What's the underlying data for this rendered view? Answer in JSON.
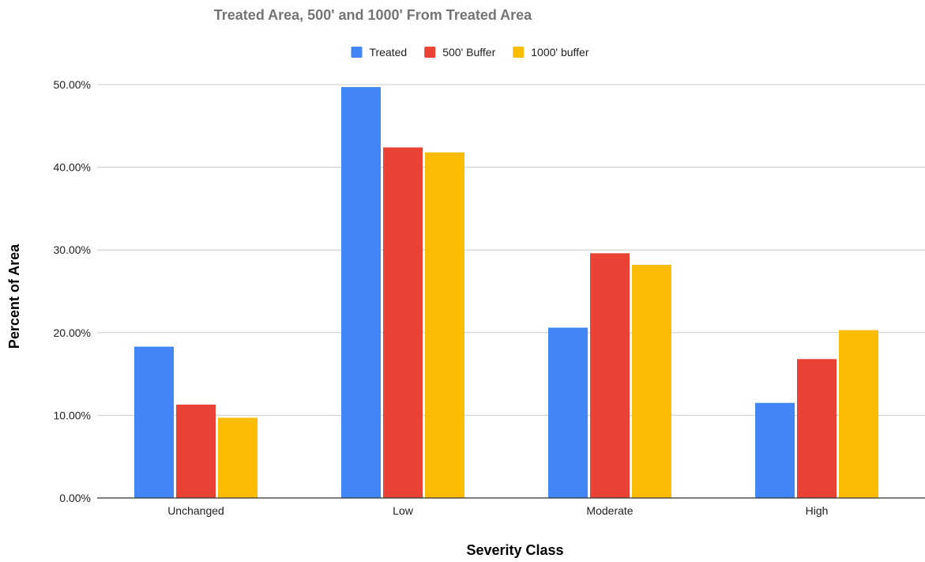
{
  "chart_data": {
    "type": "bar",
    "title": "Treated Area, 500' and 1000' From Treated Area",
    "xlabel": "Severity Class",
    "ylabel": "Percent of Area",
    "categories": [
      "Unchanged",
      "Low",
      "Moderate",
      "High"
    ],
    "series": [
      {
        "name": "Treated",
        "color": "#4285f4",
        "values": [
          18.3,
          49.7,
          20.6,
          11.5
        ]
      },
      {
        "name": "500' Buffer",
        "color": "#ea4335",
        "values": [
          11.3,
          42.4,
          29.6,
          16.8
        ]
      },
      {
        "name": "1000' buffer",
        "color": "#fbbc04",
        "values": [
          9.7,
          41.8,
          28.2,
          20.3
        ]
      }
    ],
    "ylim": [
      0,
      50
    ],
    "yticks": [
      0,
      10,
      20,
      30,
      40,
      50
    ],
    "ytick_labels": [
      "0.00%",
      "10.00%",
      "20.00%",
      "30.00%",
      "40.00%",
      "50.00%"
    ],
    "grid": true,
    "legend_position": "top-center"
  }
}
